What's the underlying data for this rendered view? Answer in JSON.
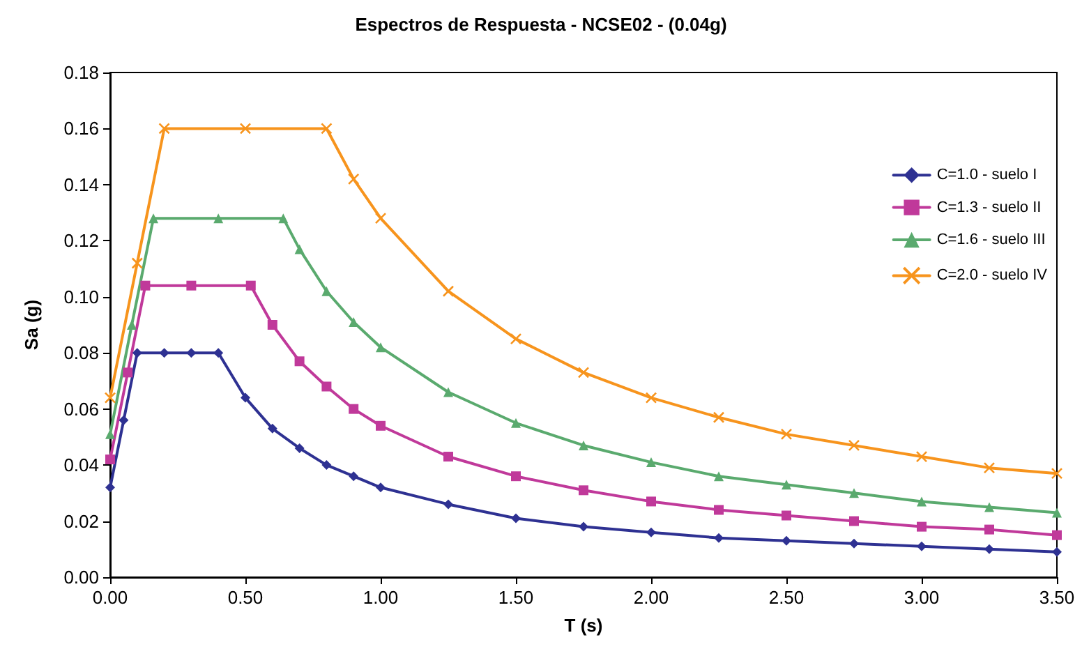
{
  "chart_data": {
    "type": "line",
    "title": "Espectros de Respuesta - NCSE02 - (0.04g)",
    "xlabel": "T (s)",
    "ylabel": "Sa (g)",
    "xlim": [
      0,
      3.5
    ],
    "xticks": [
      {
        "value": 0,
        "label": "0.00"
      },
      {
        "value": 0.5,
        "label": "0.50"
      },
      {
        "value": 1,
        "label": "1.00"
      },
      {
        "value": 1.5,
        "label": "1.50"
      },
      {
        "value": 2,
        "label": "2.00"
      },
      {
        "value": 2.5,
        "label": "2.50"
      },
      {
        "value": 3,
        "label": "3.00"
      },
      {
        "value": 3.5,
        "label": "3.50"
      }
    ],
    "ylim": [
      0,
      0.18
    ],
    "yticks": [
      {
        "value": 0,
        "label": "0.00"
      },
      {
        "value": 0.02,
        "label": "0.02"
      },
      {
        "value": 0.04,
        "label": "0.04"
      },
      {
        "value": 0.06,
        "label": "0.06"
      },
      {
        "value": 0.08,
        "label": "0.08"
      },
      {
        "value": 0.1,
        "label": "0.10"
      },
      {
        "value": 0.12,
        "label": "0.12"
      },
      {
        "value": 0.14,
        "label": "0.14"
      },
      {
        "value": 0.16,
        "label": "0.16"
      },
      {
        "value": 0.18,
        "label": "0.18"
      }
    ],
    "grid": false,
    "legend": "right",
    "line_style": "solid",
    "series": [
      {
        "name": "C=1.0 - suelo I",
        "color": "#2e3192",
        "marker": "diamond",
        "x": [
          0,
          0.05,
          0.1,
          0.2,
          0.3,
          0.4,
          0.5,
          0.6,
          0.7,
          0.8,
          0.9,
          1.0,
          1.25,
          1.5,
          1.75,
          2.0,
          2.25,
          2.5,
          2.75,
          3.0,
          3.25,
          3.5
        ],
        "values": [
          0.032,
          0.056,
          0.08,
          0.08,
          0.08,
          0.08,
          0.064,
          0.053,
          0.046,
          0.04,
          0.036,
          0.032,
          0.026,
          0.021,
          0.018,
          0.016,
          0.014,
          0.013,
          0.012,
          0.011,
          0.01,
          0.009
        ]
      },
      {
        "name": "C=1.3 - suelo II",
        "color": "#c0399a",
        "marker": "square",
        "x": [
          0,
          0.065,
          0.13,
          0.3,
          0.52,
          0.6,
          0.7,
          0.8,
          0.9,
          1.0,
          1.25,
          1.5,
          1.75,
          2.0,
          2.25,
          2.5,
          2.75,
          3.0,
          3.25,
          3.5
        ],
        "values": [
          0.042,
          0.073,
          0.104,
          0.104,
          0.104,
          0.09,
          0.077,
          0.068,
          0.06,
          0.054,
          0.043,
          0.036,
          0.031,
          0.027,
          0.024,
          0.022,
          0.02,
          0.018,
          0.017,
          0.015
        ]
      },
      {
        "name": "C=1.6 - suelo III",
        "color": "#5aaa6e",
        "marker": "triangle",
        "x": [
          0,
          0.08,
          0.16,
          0.4,
          0.64,
          0.7,
          0.8,
          0.9,
          1.0,
          1.25,
          1.5,
          1.75,
          2.0,
          2.25,
          2.5,
          2.75,
          3.0,
          3.25,
          3.5
        ],
        "values": [
          0.051,
          0.09,
          0.128,
          0.128,
          0.128,
          0.117,
          0.102,
          0.091,
          0.082,
          0.066,
          0.055,
          0.047,
          0.041,
          0.036,
          0.033,
          0.03,
          0.027,
          0.025,
          0.023
        ]
      },
      {
        "name": "C=2.0 - suelo IV",
        "color": "#f7941d",
        "marker": "cross",
        "x": [
          0,
          0.1,
          0.2,
          0.5,
          0.8,
          0.9,
          1.0,
          1.25,
          1.5,
          1.75,
          2.0,
          2.25,
          2.5,
          2.75,
          3.0,
          3.25,
          3.5
        ],
        "values": [
          0.064,
          0.112,
          0.16,
          0.16,
          0.16,
          0.142,
          0.128,
          0.102,
          0.085,
          0.073,
          0.064,
          0.057,
          0.051,
          0.047,
          0.043,
          0.039,
          0.037
        ]
      }
    ]
  }
}
